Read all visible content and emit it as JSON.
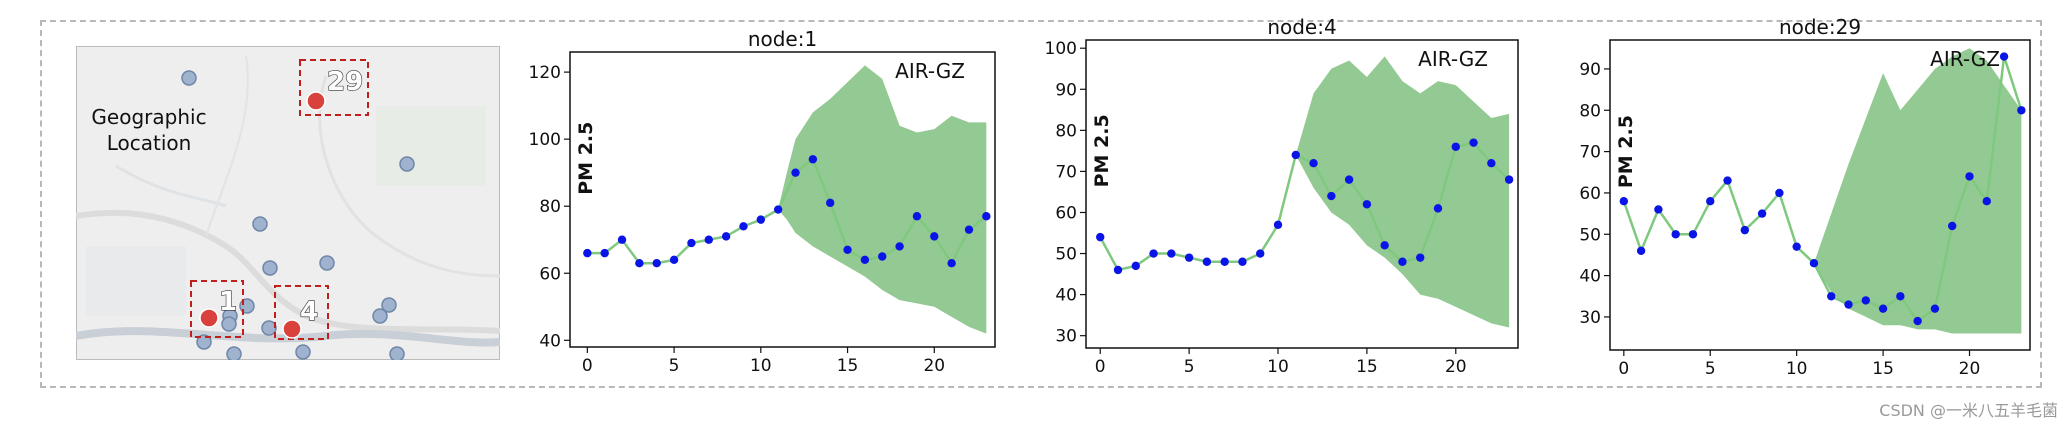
{
  "map": {
    "label_line1": "Geographic",
    "label_line2": "Location",
    "highlight_labels": [
      "29",
      "1",
      "4"
    ],
    "highlight_color": "#d9413c",
    "node_color": "#9fb3cf",
    "box_color": "#c0201c"
  },
  "colors": {
    "line": "#7fc97f",
    "point": "#0a14e6",
    "band": "#93c992",
    "frame": "#b8b8b8"
  },
  "watermark": "CSDN @一米八五羊毛菌",
  "chart_data": [
    {
      "type": "line",
      "title": "node:1",
      "annotation": "AIR-GZ",
      "ylabel": "PM 2.5",
      "xlim": [
        -1,
        23.5
      ],
      "ylim": [
        38,
        126
      ],
      "xticks": [
        0,
        5,
        10,
        15,
        20
      ],
      "yticks": [
        40,
        60,
        80,
        100,
        120
      ],
      "series": [
        {
          "x": [
            0,
            1,
            2,
            3,
            4,
            5,
            6,
            7,
            8,
            9,
            10,
            11,
            12,
            13,
            14,
            15,
            16,
            17,
            18,
            19,
            20,
            21,
            22,
            23
          ],
          "values": [
            66,
            66,
            70,
            63,
            63,
            64,
            69,
            70,
            71,
            74,
            76,
            79,
            90,
            94,
            81,
            67,
            64,
            65,
            68,
            77,
            71,
            63,
            73,
            77
          ]
        }
      ],
      "band": {
        "x": [
          11,
          11.5,
          12,
          13,
          14,
          15,
          16,
          17,
          18,
          19,
          20,
          21,
          22,
          23
        ],
        "upper": [
          79,
          90,
          100,
          108,
          112,
          117,
          122,
          118,
          104,
          102,
          103,
          107,
          105,
          105
        ],
        "lower": [
          79,
          76,
          72,
          68,
          65,
          62,
          59,
          55,
          52,
          51,
          50,
          47,
          44,
          42
        ]
      }
    },
    {
      "type": "line",
      "title": "node:4",
      "annotation": "AIR-GZ",
      "ylabel": "PM 2.5",
      "xlim": [
        -0.8,
        23.5
      ],
      "ylim": [
        27,
        102
      ],
      "xticks": [
        0,
        5,
        10,
        15,
        20
      ],
      "yticks": [
        30,
        40,
        50,
        60,
        70,
        80,
        90,
        100
      ],
      "series": [
        {
          "x": [
            0,
            1,
            2,
            3,
            4,
            5,
            6,
            7,
            8,
            9,
            10,
            11,
            12,
            13,
            14,
            15,
            16,
            17,
            18,
            19,
            20,
            21,
            22,
            23
          ],
          "values": [
            54,
            46,
            47,
            50,
            50,
            49,
            48,
            48,
            48,
            50,
            57,
            74,
            72,
            64,
            68,
            62,
            52,
            48,
            49,
            61,
            76,
            77,
            72,
            68
          ]
        }
      ],
      "band": {
        "x": [
          11,
          12,
          13,
          14,
          15,
          16,
          17,
          18,
          19,
          20,
          21,
          22,
          23
        ],
        "upper": [
          74,
          89,
          95,
          97,
          93,
          98,
          92,
          89,
          92,
          91,
          87,
          83,
          84
        ],
        "lower": [
          74,
          66,
          60,
          57,
          52,
          49,
          45,
          40,
          39,
          37,
          35,
          33,
          32
        ]
      }
    },
    {
      "type": "line",
      "title": "node:29",
      "annotation": "AIR-GZ",
      "ylabel": "PM 2.5",
      "xlim": [
        -0.8,
        23.5
      ],
      "ylim": [
        22,
        97
      ],
      "xticks": [
        0,
        5,
        10,
        15,
        20
      ],
      "yticks": [
        30,
        40,
        50,
        60,
        70,
        80,
        90
      ],
      "series": [
        {
          "x": [
            0,
            1,
            2,
            3,
            4,
            5,
            6,
            7,
            8,
            9,
            10,
            11,
            12,
            13,
            14,
            15,
            16,
            17,
            18,
            19,
            20,
            21,
            22,
            23
          ],
          "values": [
            58,
            46,
            56,
            50,
            50,
            58,
            63,
            51,
            55,
            60,
            47,
            43,
            35,
            33,
            34,
            32,
            35,
            29,
            32,
            52,
            64,
            58,
            93,
            80
          ]
        }
      ],
      "band": {
        "x": [
          11,
          12,
          13,
          14,
          15,
          16,
          17,
          18,
          19,
          20,
          21,
          22,
          23
        ],
        "upper": [
          43,
          55,
          67,
          78,
          89,
          80,
          85,
          90,
          93,
          95,
          92,
          86,
          80
        ],
        "lower": [
          43,
          36,
          32,
          30,
          28,
          28,
          27,
          27,
          26,
          26,
          26,
          26,
          26
        ]
      }
    }
  ]
}
